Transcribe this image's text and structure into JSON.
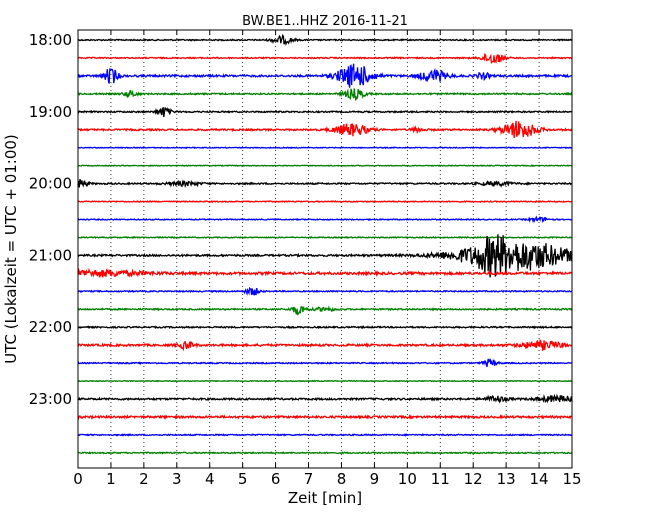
{
  "chart_data": {
    "type": "line",
    "title": "BW.BE1..HHZ 2016-11-21",
    "xlabel": "Zeit  [min]",
    "ylabel": "UTC (Lokalzeit = UTC + 01:00)",
    "xlim": [
      0,
      15
    ],
    "x_ticks": [
      "0",
      "1",
      "2",
      "3",
      "4",
      "5",
      "6",
      "7",
      "8",
      "9",
      "10",
      "11",
      "12",
      "13",
      "14",
      "15"
    ],
    "y_tick_labels": [
      "18:00",
      "19:00",
      "20:00",
      "21:00",
      "22:00",
      "23:00"
    ],
    "grid": "vertical-dotted",
    "trace_colors": [
      "#000000",
      "#ff0000",
      "#0000ff",
      "#008000"
    ],
    "traces": [
      {
        "start": "18:00",
        "noise": 0.6,
        "events": [
          [
            6.2,
            4,
            0.3
          ]
        ]
      },
      {
        "start": "18:15",
        "noise": 0.6,
        "events": [
          [
            12.6,
            6,
            0.3
          ]
        ]
      },
      {
        "start": "18:30",
        "noise": 1.0,
        "events": [
          [
            1.0,
            8,
            0.2
          ],
          [
            8.4,
            12,
            0.5
          ],
          [
            10.8,
            6,
            0.4
          ],
          [
            12.3,
            3,
            0.2
          ]
        ]
      },
      {
        "start": "18:45",
        "noise": 0.7,
        "events": [
          [
            1.6,
            3,
            0.2
          ],
          [
            8.4,
            5,
            0.3
          ]
        ]
      },
      {
        "start": "19:00",
        "noise": 0.7,
        "events": [
          [
            2.6,
            5,
            0.2
          ]
        ]
      },
      {
        "start": "19:15",
        "noise": 0.8,
        "events": [
          [
            8.3,
            6,
            0.5
          ],
          [
            13.4,
            9,
            0.5
          ],
          [
            10.3,
            2,
            0.2
          ]
        ]
      },
      {
        "start": "19:30",
        "noise": 0.4,
        "events": []
      },
      {
        "start": "19:45",
        "noise": 0.4,
        "events": []
      },
      {
        "start": "20:00",
        "noise": 0.7,
        "events": [
          [
            0.1,
            4,
            0.2
          ],
          [
            3.2,
            2,
            0.5
          ],
          [
            12.7,
            2,
            0.5
          ]
        ]
      },
      {
        "start": "20:15",
        "noise": 0.5,
        "events": []
      },
      {
        "start": "20:30",
        "noise": 0.5,
        "events": [
          [
            14.0,
            2,
            0.3
          ]
        ]
      },
      {
        "start": "20:45",
        "noise": 0.5,
        "events": []
      },
      {
        "start": "21:00",
        "noise": 0.9,
        "events": [
          [
            12.6,
            10,
            0.4
          ],
          [
            13.0,
            12,
            1.6
          ],
          [
            14.0,
            5,
            1.2
          ]
        ]
      },
      {
        "start": "21:15",
        "noise": 1.2,
        "events": [
          [
            0.4,
            3,
            1.5
          ]
        ]
      },
      {
        "start": "21:30",
        "noise": 0.6,
        "events": [
          [
            5.3,
            4,
            0.2
          ]
        ]
      },
      {
        "start": "21:45",
        "noise": 0.7,
        "events": [
          [
            6.7,
            5,
            0.2
          ],
          [
            7.5,
            2,
            0.3
          ]
        ]
      },
      {
        "start": "22:00",
        "noise": 0.7,
        "events": []
      },
      {
        "start": "22:15",
        "noise": 1.0,
        "events": [
          [
            3.3,
            4,
            0.2
          ],
          [
            14.1,
            4,
            0.6
          ]
        ]
      },
      {
        "start": "22:30",
        "noise": 0.6,
        "events": [
          [
            12.5,
            4,
            0.2
          ]
        ]
      },
      {
        "start": "22:45",
        "noise": 0.4,
        "events": []
      },
      {
        "start": "23:00",
        "noise": 0.9,
        "events": [
          [
            12.7,
            3,
            0.3
          ],
          [
            14.6,
            3,
            0.6
          ]
        ]
      },
      {
        "start": "23:15",
        "noise": 1.0,
        "events": []
      },
      {
        "start": "23:30",
        "noise": 0.6,
        "events": []
      },
      {
        "start": "23:45",
        "noise": 0.6,
        "events": []
      }
    ]
  }
}
